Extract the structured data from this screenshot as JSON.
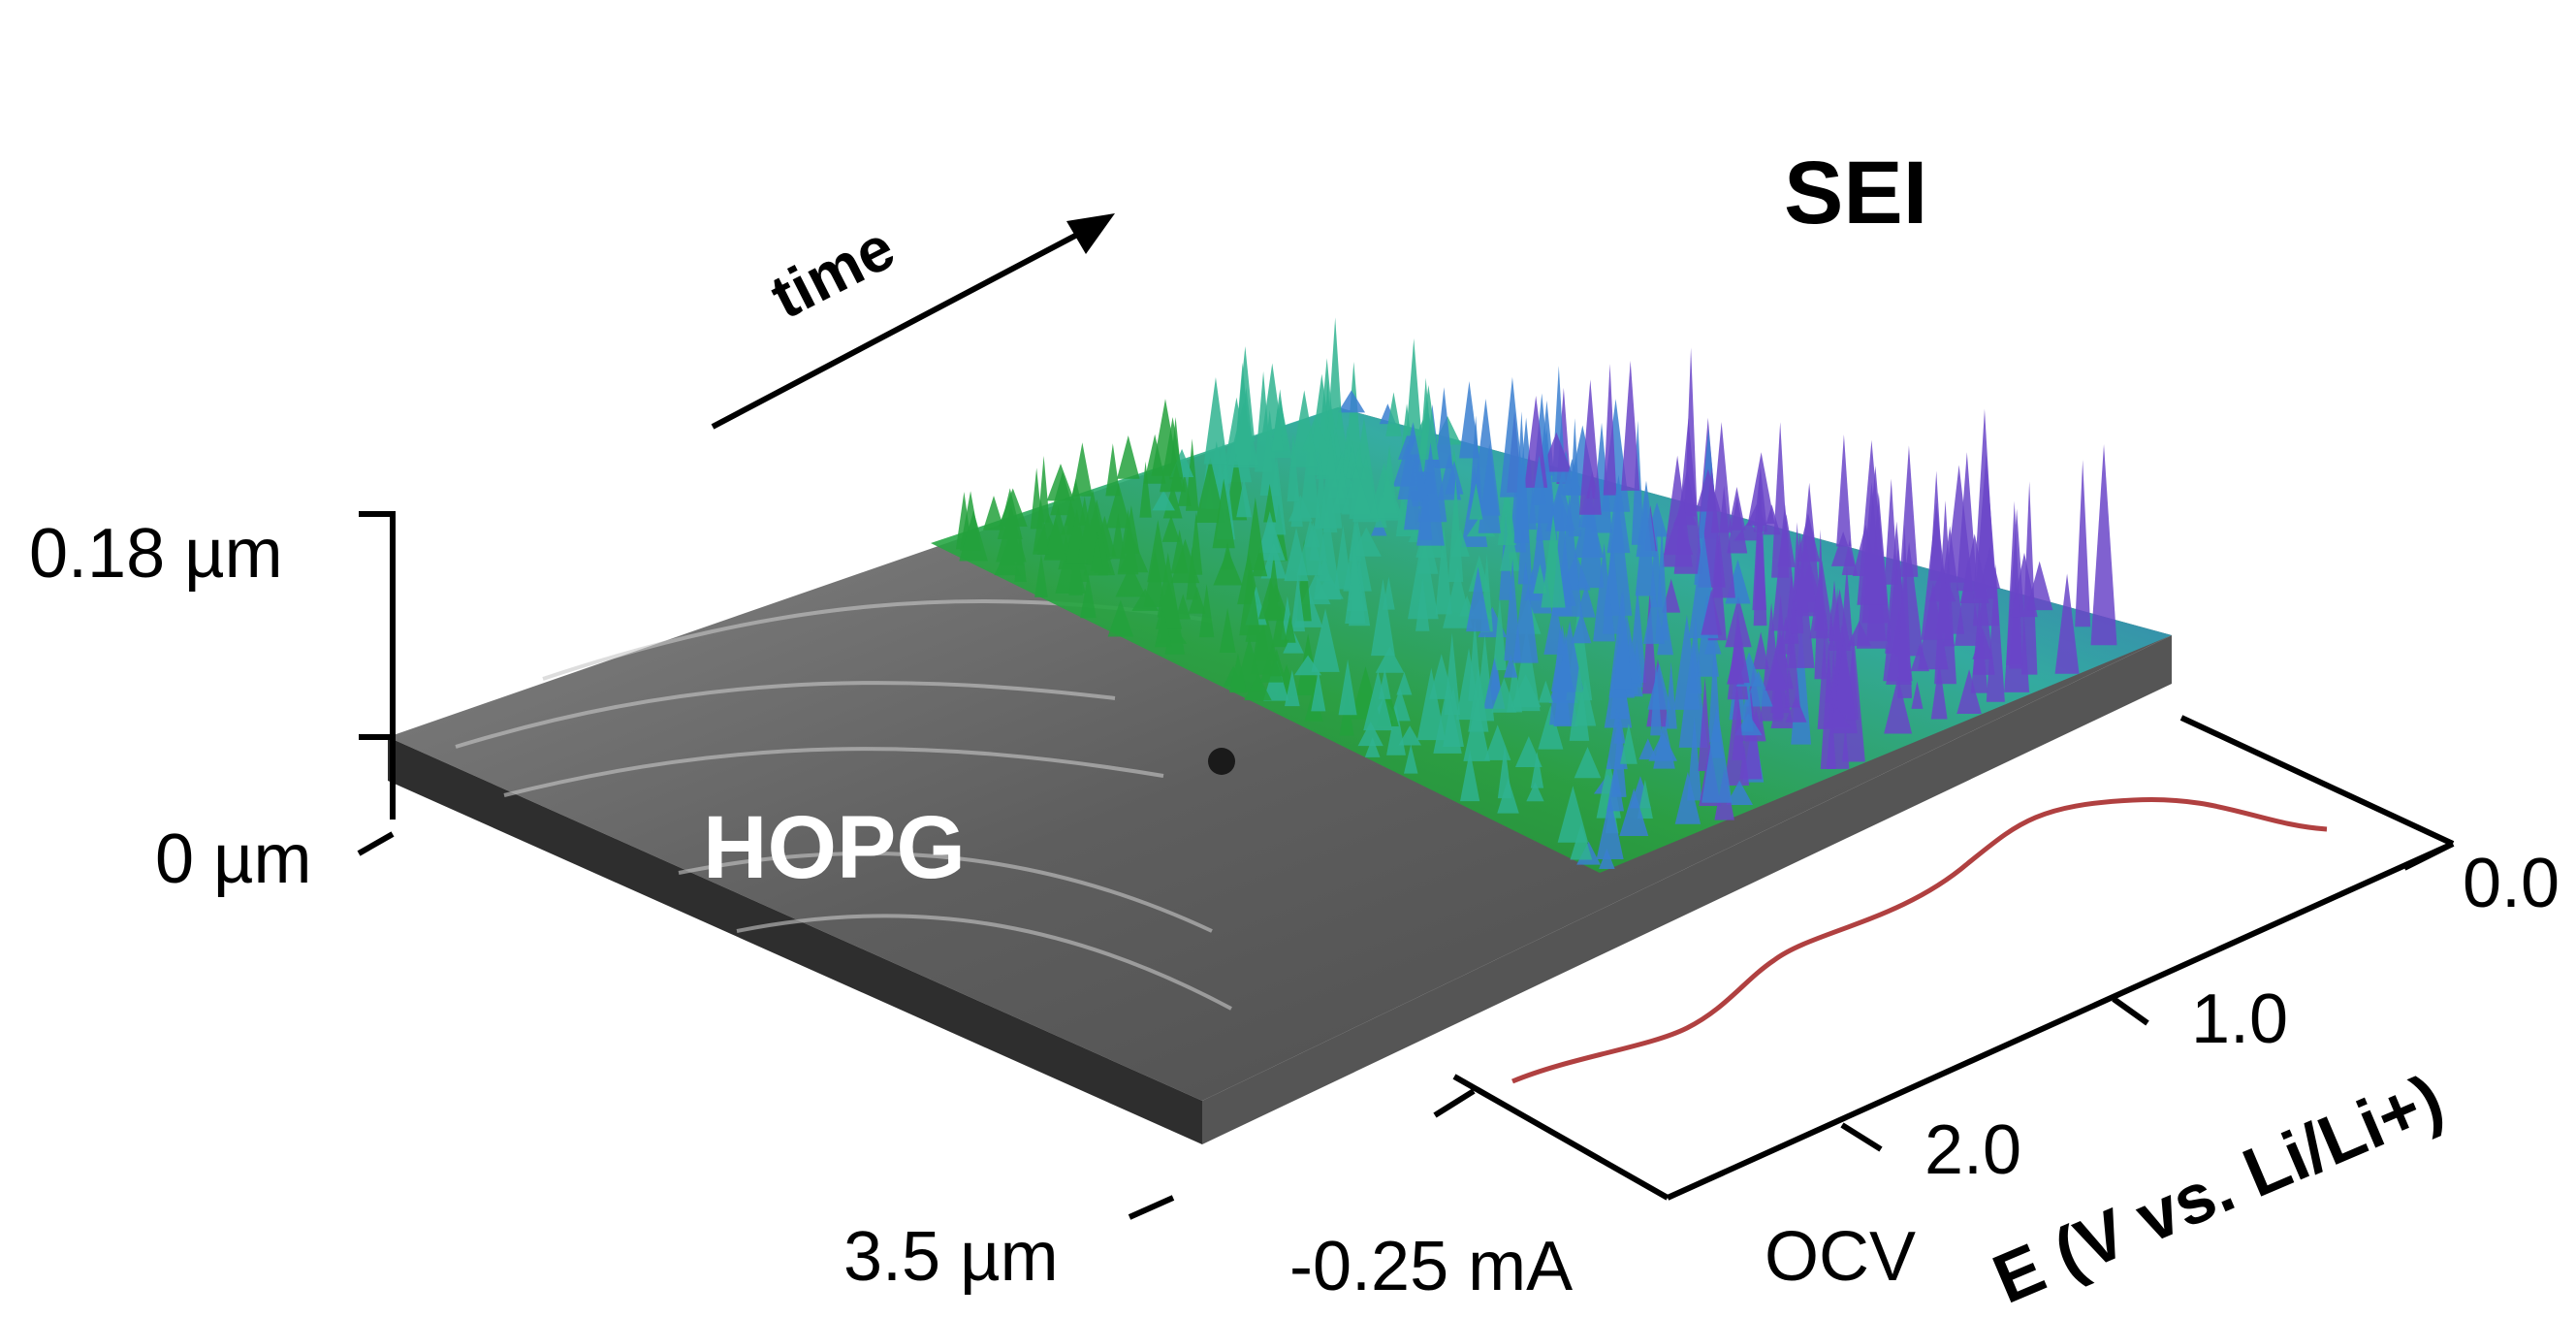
{
  "labels": {
    "time": "time",
    "sei": "SEI",
    "hopg": "HOPG"
  },
  "height_scale": {
    "top": "0.18 µm",
    "bottom": "0 µm"
  },
  "depth_scale": {
    "label": "3.5 µm"
  },
  "current_axis": {
    "label": "-0.25 mA"
  },
  "potential_axis": {
    "title": "E (V vs. Li/Li+)",
    "ticks": [
      "OCV",
      "2.0",
      "1.0",
      "0.0"
    ]
  },
  "colors": {
    "substrate": "#6f6f6f",
    "substrate_dark": "#3a3a3a",
    "sei_green": "#1f9e3a",
    "sei_cyan": "#2fb3a8",
    "sei_blue": "#3a5fd0",
    "sei_purple": "#7a3fc0",
    "curve": "#b04040"
  }
}
